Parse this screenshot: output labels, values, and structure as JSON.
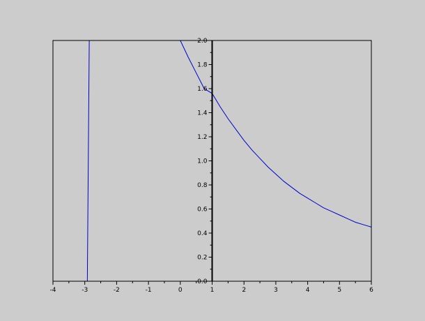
{
  "chart_data": {
    "type": "line",
    "title": "",
    "xlabel": "",
    "ylabel": "",
    "xlim": [
      -4,
      6
    ],
    "ylim": [
      0,
      2
    ],
    "x_ticks": [
      -4,
      -3,
      -2,
      -1,
      0,
      1,
      2,
      3,
      4,
      5,
      6
    ],
    "x_tick_labels": [
      "-4",
      "-3",
      "-2",
      "-1",
      "0",
      "1",
      "2",
      "3",
      "4",
      "5",
      "6"
    ],
    "y_ticks": [
      0,
      0.2,
      0.4,
      0.6,
      0.8,
      1.0,
      1.2,
      1.4,
      1.6,
      1.8,
      2.0
    ],
    "y_tick_labels": [
      "0.0",
      "0.2",
      "0.4",
      "0.6",
      "0.8",
      "1.0",
      "1.2",
      "1.4",
      "1.6",
      "1.8",
      "2.0"
    ],
    "grid": false,
    "y_axis_at_x": 1,
    "series": [
      {
        "color": "#0000cc",
        "x": [
          -2.92,
          -2.91,
          -2.9,
          -2.89,
          -2.88,
          -2.87,
          -2.86
        ],
        "y": [
          0.0,
          0.33,
          0.67,
          1.0,
          1.33,
          1.67,
          2.0
        ]
      },
      {
        "color": "#0000cc",
        "x": [
          0.0,
          0.25,
          0.5,
          0.75,
          1.0,
          1.25,
          1.5,
          1.75,
          2.0,
          2.25,
          2.5,
          2.75,
          3.0,
          3.25,
          3.5,
          3.75,
          4.0,
          4.25,
          4.5,
          4.75,
          5.0,
          5.25,
          5.5,
          5.75,
          6.0
        ],
        "y": [
          2.0,
          1.86,
          1.73,
          1.6,
          1.56,
          1.45,
          1.35,
          1.26,
          1.17,
          1.09,
          1.02,
          0.95,
          0.89,
          0.83,
          0.78,
          0.73,
          0.69,
          0.65,
          0.61,
          0.58,
          0.55,
          0.52,
          0.49,
          0.47,
          0.45
        ]
      }
    ],
    "background_color": "#cccccc",
    "frame_color": "#000000"
  }
}
